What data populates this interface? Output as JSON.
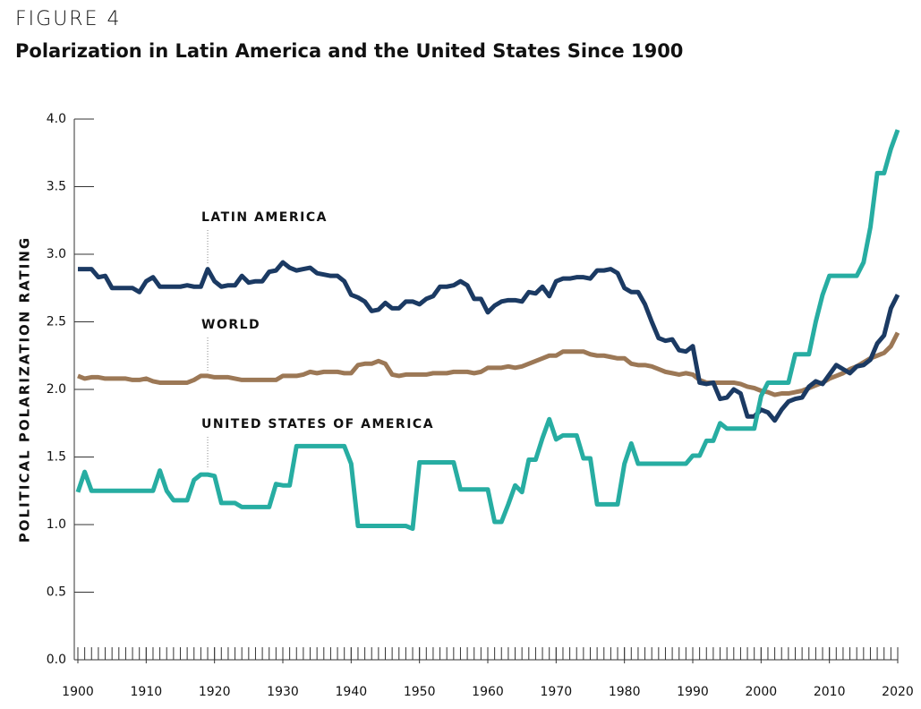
{
  "chart_data": {
    "type": "line",
    "figure_label": "FIGURE 4",
    "title": "Polarization in Latin America and the United States Since 1900",
    "y_label": "POLITICAL POLARIZATION RATING",
    "annotations": [
      "LATIN AMERICA",
      "WORLD",
      "UNITED STATES OF AMERICA"
    ],
    "xlim": [
      1900,
      2020
    ],
    "ylim": [
      0,
      4
    ],
    "xticks": [
      1900,
      1910,
      1920,
      1930,
      1940,
      1950,
      1960,
      1970,
      1980,
      1990,
      2000,
      2010,
      2020
    ],
    "yticks": [
      {
        "value": 0,
        "label": "0.0"
      },
      {
        "value": 0.5,
        "label": "0.5"
      },
      {
        "value": 1,
        "label": "1.0"
      },
      {
        "value": 1.5,
        "label": "1.5"
      },
      {
        "value": 2,
        "label": "2.0"
      },
      {
        "value": 2.5,
        "label": "2.5"
      },
      {
        "value": 3,
        "label": "3.0"
      },
      {
        "value": 3.5,
        "label": "3.5"
      },
      {
        "value": 4,
        "label": "4.0"
      }
    ],
    "x": [
      1900,
      1901,
      1902,
      1903,
      1904,
      1905,
      1906,
      1907,
      1908,
      1909,
      1910,
      1911,
      1912,
      1913,
      1914,
      1915,
      1916,
      1917,
      1918,
      1919,
      1920,
      1921,
      1922,
      1923,
      1924,
      1925,
      1926,
      1927,
      1928,
      1929,
      1930,
      1931,
      1932,
      1933,
      1934,
      1935,
      1936,
      1937,
      1938,
      1939,
      1940,
      1941,
      1942,
      1943,
      1944,
      1945,
      1946,
      1947,
      1948,
      1949,
      1950,
      1951,
      1952,
      1953,
      1954,
      1955,
      1956,
      1957,
      1958,
      1959,
      1960,
      1961,
      1962,
      1963,
      1964,
      1965,
      1966,
      1967,
      1968,
      1969,
      1970,
      1971,
      1972,
      1973,
      1974,
      1975,
      1976,
      1977,
      1978,
      1979,
      1980,
      1981,
      1982,
      1983,
      1984,
      1985,
      1986,
      1987,
      1988,
      1989,
      1990,
      1991,
      1992,
      1993,
      1994,
      1995,
      1996,
      1997,
      1998,
      1999,
      2000,
      2001,
      2002,
      2003,
      2004,
      2005,
      2006,
      2007,
      2008,
      2009,
      2010,
      2011,
      2012,
      2013,
      2014,
      2015,
      2016,
      2017,
      2018,
      2019,
      2020
    ],
    "series": [
      {
        "color": "#1b3a63",
        "values": [
          2.89,
          2.89,
          2.89,
          2.83,
          2.84,
          2.75,
          2.75,
          2.75,
          2.75,
          2.72,
          2.8,
          2.83,
          2.76,
          2.76,
          2.76,
          2.76,
          2.77,
          2.76,
          2.76,
          2.89,
          2.8,
          2.76,
          2.77,
          2.77,
          2.84,
          2.79,
          2.8,
          2.8,
          2.87,
          2.88,
          2.94,
          2.9,
          2.88,
          2.89,
          2.9,
          2.86,
          2.85,
          2.84,
          2.84,
          2.8,
          2.7,
          2.68,
          2.65,
          2.58,
          2.59,
          2.64,
          2.6,
          2.6,
          2.65,
          2.65,
          2.63,
          2.67,
          2.69,
          2.76,
          2.76,
          2.77,
          2.8,
          2.77,
          2.67,
          2.67,
          2.57,
          2.62,
          2.65,
          2.66,
          2.66,
          2.65,
          2.72,
          2.71,
          2.76,
          2.69,
          2.8,
          2.82,
          2.82,
          2.83,
          2.83,
          2.82,
          2.88,
          2.88,
          2.89,
          2.86,
          2.75,
          2.72,
          2.72,
          2.63,
          2.5,
          2.38,
          2.36,
          2.37,
          2.29,
          2.28,
          2.32,
          2.05,
          2.04,
          2.05,
          1.93,
          1.94,
          2.0,
          1.97,
          1.8,
          1.8,
          1.85,
          1.83,
          1.77,
          1.85,
          1.91,
          1.93,
          1.94,
          2.02,
          2.06,
          2.04,
          2.11,
          2.18,
          2.15,
          2.12,
          2.17,
          2.18,
          2.22,
          2.34,
          2.4,
          2.6,
          2.7
        ]
      },
      {
        "color": "#9c7856",
        "values": [
          2.1,
          2.08,
          2.09,
          2.09,
          2.08,
          2.08,
          2.08,
          2.08,
          2.07,
          2.07,
          2.08,
          2.06,
          2.05,
          2.05,
          2.05,
          2.05,
          2.05,
          2.07,
          2.1,
          2.1,
          2.09,
          2.09,
          2.09,
          2.08,
          2.07,
          2.07,
          2.07,
          2.07,
          2.07,
          2.07,
          2.1,
          2.1,
          2.1,
          2.11,
          2.13,
          2.12,
          2.13,
          2.13,
          2.13,
          2.12,
          2.12,
          2.18,
          2.19,
          2.19,
          2.21,
          2.19,
          2.11,
          2.1,
          2.11,
          2.11,
          2.11,
          2.11,
          2.12,
          2.12,
          2.12,
          2.13,
          2.13,
          2.13,
          2.12,
          2.13,
          2.16,
          2.16,
          2.16,
          2.17,
          2.16,
          2.17,
          2.19,
          2.21,
          2.23,
          2.25,
          2.25,
          2.28,
          2.28,
          2.28,
          2.28,
          2.26,
          2.25,
          2.25,
          2.24,
          2.23,
          2.23,
          2.19,
          2.18,
          2.18,
          2.17,
          2.15,
          2.13,
          2.12,
          2.11,
          2.12,
          2.11,
          2.07,
          2.05,
          2.05,
          2.05,
          2.05,
          2.05,
          2.04,
          2.02,
          2.01,
          1.99,
          1.98,
          1.96,
          1.97,
          1.97,
          1.98,
          1.99,
          2.01,
          2.03,
          2.05,
          2.08,
          2.1,
          2.12,
          2.15,
          2.17,
          2.2,
          2.23,
          2.25,
          2.27,
          2.32,
          2.42
        ]
      },
      {
        "color": "#27ada2",
        "values": [
          1.24,
          1.39,
          1.25,
          1.25,
          1.25,
          1.25,
          1.25,
          1.25,
          1.25,
          1.25,
          1.25,
          1.25,
          1.4,
          1.25,
          1.18,
          1.18,
          1.18,
          1.33,
          1.37,
          1.37,
          1.36,
          1.16,
          1.16,
          1.16,
          1.13,
          1.13,
          1.13,
          1.13,
          1.13,
          1.3,
          1.29,
          1.29,
          1.58,
          1.58,
          1.58,
          1.58,
          1.58,
          1.58,
          1.58,
          1.58,
          1.45,
          0.99,
          0.99,
          0.99,
          0.99,
          0.99,
          0.99,
          0.99,
          0.99,
          0.97,
          1.46,
          1.46,
          1.46,
          1.46,
          1.46,
          1.46,
          1.26,
          1.26,
          1.26,
          1.26,
          1.26,
          1.02,
          1.02,
          1.15,
          1.29,
          1.24,
          1.48,
          1.48,
          1.64,
          1.78,
          1.63,
          1.66,
          1.66,
          1.66,
          1.49,
          1.49,
          1.15,
          1.15,
          1.15,
          1.15,
          1.45,
          1.6,
          1.45,
          1.45,
          1.45,
          1.45,
          1.45,
          1.45,
          1.45,
          1.45,
          1.51,
          1.51,
          1.62,
          1.62,
          1.75,
          1.71,
          1.71,
          1.71,
          1.71,
          1.71,
          1.95,
          2.05,
          2.05,
          2.05,
          2.05,
          2.26,
          2.26,
          2.26,
          2.5,
          2.7,
          2.84,
          2.84,
          2.84,
          2.84,
          2.84,
          2.94,
          3.2,
          3.6,
          3.6,
          3.78,
          3.92
        ]
      }
    ]
  }
}
